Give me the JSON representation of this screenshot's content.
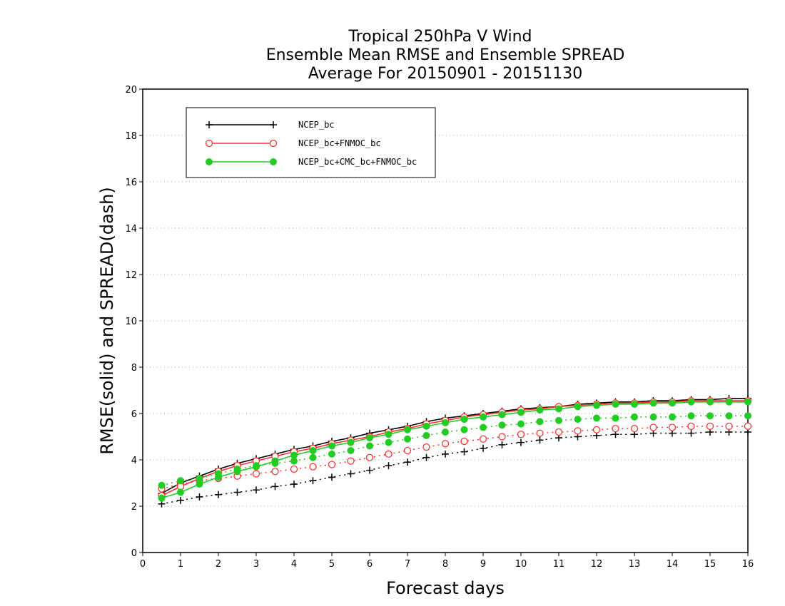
{
  "chart_data": {
    "type": "line",
    "title": [
      "Tropical 250hPa V Wind",
      "Ensemble Mean RMSE and Ensemble SPREAD",
      "Average For 20150901 - 20151130"
    ],
    "xlabel": "Forecast days",
    "ylabel": "RMSE(solid) and SPREAD(dash)",
    "xlim": [
      0,
      16
    ],
    "ylim": [
      0,
      20
    ],
    "xticks": [
      0,
      1,
      2,
      3,
      4,
      5,
      6,
      7,
      8,
      9,
      10,
      11,
      12,
      13,
      14,
      15,
      16
    ],
    "yticks": [
      0,
      2,
      4,
      6,
      8,
      10,
      12,
      14,
      16,
      18,
      20
    ],
    "grid": "horizontal dotted",
    "legend_position": "top-left",
    "x": [
      0.5,
      1,
      1.5,
      2,
      2.5,
      3,
      3.5,
      4,
      4.5,
      5,
      5.5,
      6,
      6.5,
      7,
      7.5,
      8,
      8.5,
      9,
      9.5,
      10,
      10.5,
      11,
      11.5,
      12,
      12.5,
      13,
      13.5,
      14,
      14.5,
      15,
      15.5,
      16
    ],
    "series": [
      {
        "name": "NCEP_bc",
        "color": "#000000",
        "marker": "plus",
        "rmse": [
          2.55,
          3.0,
          3.3,
          3.6,
          3.85,
          4.05,
          4.25,
          4.45,
          4.6,
          4.8,
          4.95,
          5.15,
          5.3,
          5.45,
          5.65,
          5.8,
          5.9,
          6.0,
          6.1,
          6.2,
          6.25,
          6.3,
          6.4,
          6.45,
          6.5,
          6.5,
          6.55,
          6.55,
          6.6,
          6.6,
          6.65,
          6.65
        ],
        "spread": [
          2.1,
          2.25,
          2.4,
          2.5,
          2.6,
          2.7,
          2.85,
          2.95,
          3.1,
          3.25,
          3.4,
          3.55,
          3.75,
          3.9,
          4.1,
          4.25,
          4.35,
          4.5,
          4.65,
          4.75,
          4.85,
          4.95,
          5.0,
          5.05,
          5.1,
          5.1,
          5.15,
          5.15,
          5.15,
          5.2,
          5.2,
          5.2
        ]
      },
      {
        "name": "NCEP_bc+FNMOC_bc",
        "color": "#ff3030",
        "marker": "open-circle",
        "rmse": [
          2.45,
          2.85,
          3.2,
          3.5,
          3.75,
          3.95,
          4.15,
          4.35,
          4.5,
          4.7,
          4.85,
          5.0,
          5.2,
          5.35,
          5.55,
          5.7,
          5.85,
          5.95,
          6.05,
          6.15,
          6.2,
          6.3,
          6.35,
          6.4,
          6.45,
          6.45,
          6.5,
          6.5,
          6.55,
          6.55,
          6.55,
          6.55
        ],
        "spread": [
          2.75,
          2.95,
          3.1,
          3.2,
          3.3,
          3.4,
          3.5,
          3.6,
          3.7,
          3.8,
          3.95,
          4.1,
          4.25,
          4.4,
          4.55,
          4.7,
          4.8,
          4.9,
          5.0,
          5.1,
          5.15,
          5.2,
          5.25,
          5.3,
          5.35,
          5.35,
          5.4,
          5.4,
          5.45,
          5.45,
          5.45,
          5.45
        ]
      },
      {
        "name": "NCEP_bc+CMC_bc+FNMOC_bc",
        "color": "#22cc22",
        "marker": "filled-circle",
        "rmse": [
          2.35,
          2.6,
          2.95,
          3.25,
          3.5,
          3.7,
          3.95,
          4.2,
          4.4,
          4.6,
          4.75,
          4.95,
          5.1,
          5.3,
          5.45,
          5.6,
          5.75,
          5.85,
          5.95,
          6.05,
          6.15,
          6.2,
          6.3,
          6.35,
          6.4,
          6.4,
          6.45,
          6.45,
          6.5,
          6.5,
          6.5,
          6.5
        ],
        "spread": [
          2.9,
          3.1,
          3.2,
          3.4,
          3.6,
          3.75,
          3.85,
          3.95,
          4.1,
          4.25,
          4.4,
          4.6,
          4.75,
          4.9,
          5.05,
          5.2,
          5.3,
          5.4,
          5.5,
          5.55,
          5.65,
          5.7,
          5.75,
          5.8,
          5.8,
          5.85,
          5.85,
          5.85,
          5.9,
          5.9,
          5.9,
          5.9
        ]
      }
    ]
  }
}
